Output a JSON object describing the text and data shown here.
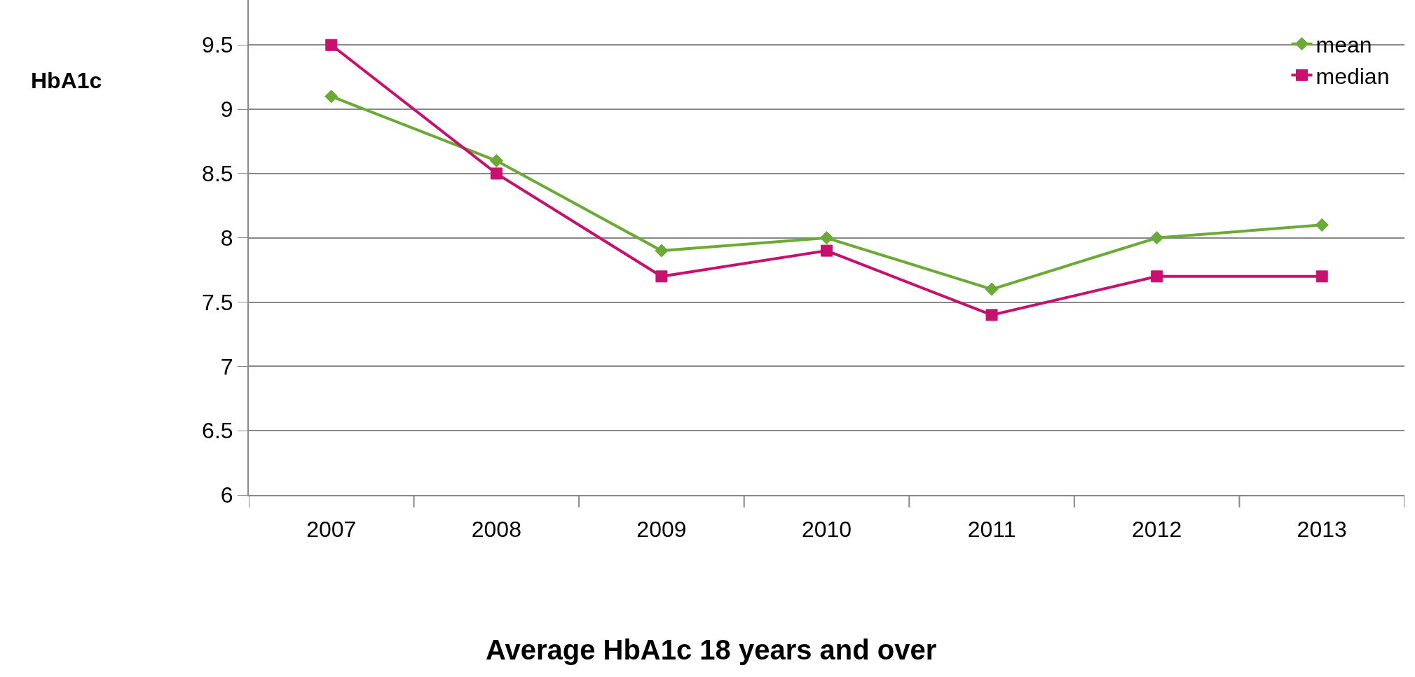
{
  "chart_data": {
    "type": "line",
    "title": "Average HbA1c 18 years and over",
    "ylabel": "HbA1c",
    "categories": [
      "2007",
      "2008",
      "2009",
      "2010",
      "2011",
      "2012",
      "2013"
    ],
    "series": [
      {
        "name": "mean",
        "color": "#6aaa35",
        "marker": "diamond",
        "values": [
          9.1,
          8.6,
          7.9,
          8.0,
          7.6,
          8.0,
          8.1
        ]
      },
      {
        "name": "median",
        "color": "#c8106e",
        "marker": "square",
        "values": [
          9.5,
          8.5,
          7.7,
          7.9,
          7.4,
          7.7,
          7.7
        ]
      }
    ],
    "ylim": [
      6,
      9.85
    ],
    "yticks": [
      6,
      6.5,
      7,
      7.5,
      8,
      8.5,
      9,
      9.5
    ],
    "grid": "y",
    "legend": "top right",
    "line_style": "solid"
  }
}
